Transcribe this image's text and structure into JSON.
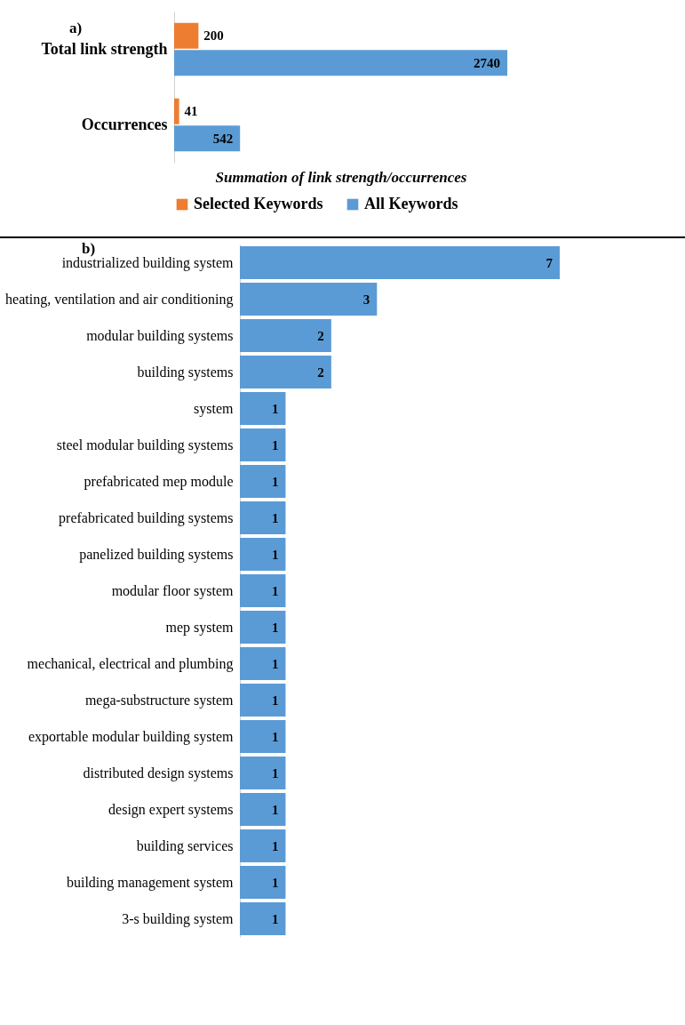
{
  "chart_data": [
    {
      "type": "bar",
      "orientation": "horizontal",
      "categories": [
        "Total link strength",
        "Occurrences"
      ],
      "series": [
        {
          "name": "Selected Keywords",
          "color": "#ed7d31",
          "values": [
            200,
            41
          ]
        },
        {
          "name": "All Keywords",
          "color": "#5b9bd5",
          "values": [
            2740,
            542
          ]
        }
      ],
      "data_labels": true,
      "xlabel": "Summation of link strength/occurrences",
      "legend": "bottom",
      "annotations": [
        "a)"
      ]
    },
    {
      "type": "bar",
      "orientation": "horizontal",
      "categories": [
        "industrialized building system",
        "heating, ventilation and air conditioning",
        "modular building systems",
        "building systems",
        "system",
        "steel modular building systems",
        "prefabricated mep module",
        "prefabricated building systems",
        "panelized building systems",
        "modular floor system",
        "mep system",
        "mechanical, electrical and plumbing",
        "mega-substructure system",
        "exportable modular building system",
        "distributed design systems",
        "design expert systems",
        "building services",
        "building management system",
        "3-s building system"
      ],
      "values": [
        7,
        3,
        2,
        2,
        1,
        1,
        1,
        1,
        1,
        1,
        1,
        1,
        1,
        1,
        1,
        1,
        1,
        1,
        1
      ],
      "color": "#5b9bd5",
      "data_labels": true,
      "annotations": [
        "b)"
      ]
    }
  ]
}
